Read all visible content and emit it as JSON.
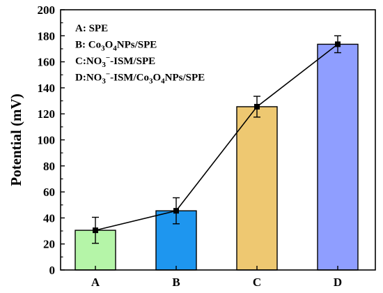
{
  "chart_data": {
    "type": "bar",
    "title": "",
    "xlabel": "",
    "ylabel": "Potential (mV)",
    "categories": [
      "A",
      "B",
      "C",
      "D"
    ],
    "values": [
      30.5,
      45.5,
      125.5,
      173.5
    ],
    "errors": [
      10,
      10,
      8,
      6.5
    ],
    "colors": [
      "#b5f5a8",
      "#1e96ef",
      "#eec871",
      "#8f9eff"
    ],
    "ylim": [
      0,
      200
    ],
    "yticks": [
      0,
      20,
      40,
      60,
      80,
      100,
      120,
      140,
      160,
      180,
      200
    ],
    "overlay_line": true,
    "grid": false,
    "legend_placement": "top-left",
    "legend": [
      {
        "key": "A",
        "parts": [
          {
            "t": "A: SPE"
          }
        ]
      },
      {
        "key": "B",
        "parts": [
          {
            "t": "B: Co"
          },
          {
            "t": "3",
            "s": "sub"
          },
          {
            "t": "O"
          },
          {
            "t": "4",
            "s": "sub"
          },
          {
            "t": "NPs/SPE"
          }
        ]
      },
      {
        "key": "C",
        "parts": [
          {
            "t": "C:NO"
          },
          {
            "t": "3",
            "s": "sub"
          },
          {
            "t": "−",
            "s": "sup"
          },
          {
            "t": "-ISM/SPE"
          }
        ]
      },
      {
        "key": "D",
        "parts": [
          {
            "t": "D:NO"
          },
          {
            "t": "3",
            "s": "sub"
          },
          {
            "t": "−",
            "s": "sup"
          },
          {
            "t": "-ISM/Co"
          },
          {
            "t": "3",
            "s": "sub"
          },
          {
            "t": "O"
          },
          {
            "t": "4",
            "s": "sub"
          },
          {
            "t": "NPs/SPE"
          }
        ]
      }
    ]
  }
}
